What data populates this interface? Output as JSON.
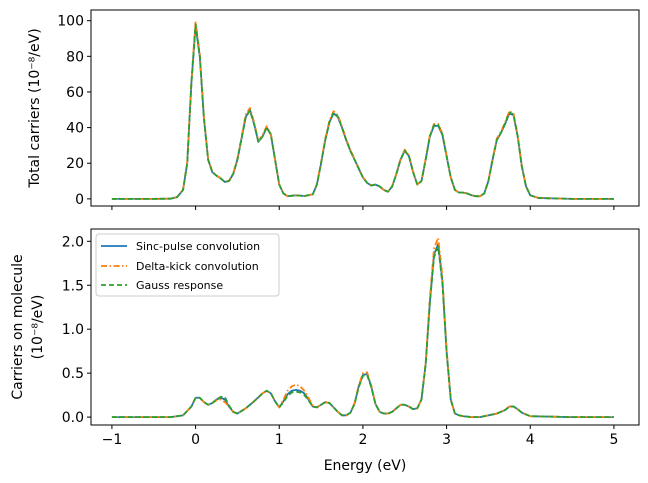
{
  "chart_data": [
    {
      "type": "line",
      "title": "",
      "xlabel": "",
      "ylabel": "Total carriers (10⁻⁸/eV)",
      "xlim": [
        -1.25,
        5.3
      ],
      "ylim": [
        -4,
        106
      ],
      "xticks": [
        -1,
        0,
        1,
        2,
        3,
        4,
        5
      ],
      "xtick_labels_visible": false,
      "yticks": [
        0,
        20,
        40,
        60,
        80,
        100
      ],
      "ytick_labels": [
        "0",
        "20",
        "40",
        "60",
        "80",
        "100"
      ],
      "legend": false,
      "series": [
        {
          "key": "sinc",
          "color": "#1f77b4",
          "dash": "solid",
          "x": [
            -1.0,
            -0.5,
            -0.3,
            -0.22,
            -0.15,
            -0.1,
            -0.05,
            0.0,
            0.05,
            0.1,
            0.15,
            0.2,
            0.25,
            0.3,
            0.35,
            0.4,
            0.45,
            0.5,
            0.55,
            0.6,
            0.65,
            0.7,
            0.75,
            0.8,
            0.85,
            0.9,
            0.95,
            1.0,
            1.05,
            1.1,
            1.2,
            1.3,
            1.4,
            1.45,
            1.5,
            1.55,
            1.6,
            1.65,
            1.7,
            1.75,
            1.8,
            1.85,
            1.9,
            2.0,
            2.05,
            2.1,
            2.15,
            2.2,
            2.25,
            2.3,
            2.35,
            2.4,
            2.45,
            2.5,
            2.55,
            2.6,
            2.65,
            2.7,
            2.75,
            2.8,
            2.85,
            2.9,
            2.95,
            3.0,
            3.05,
            3.1,
            3.15,
            3.2,
            3.25,
            3.3,
            3.35,
            3.4,
            3.45,
            3.5,
            3.55,
            3.6,
            3.65,
            3.7,
            3.75,
            3.8,
            3.85,
            3.9,
            3.95,
            4.0,
            4.1,
            4.5,
            5.0
          ],
          "y": [
            0.0,
            0.0,
            0.1,
            1.0,
            5.0,
            20.0,
            65.0,
            97.0,
            80.0,
            45.0,
            22.0,
            15.0,
            13.0,
            11.5,
            9.5,
            10.0,
            14.0,
            22.0,
            34.0,
            46.0,
            50.0,
            42.0,
            32.0,
            35.0,
            40.0,
            36.0,
            22.0,
            8.0,
            3.0,
            1.5,
            2.0,
            1.6,
            2.5,
            8.0,
            20.0,
            33.0,
            43.0,
            48.0,
            46.0,
            40.0,
            33.0,
            27.0,
            22.0,
            12.0,
            9.0,
            7.5,
            8.0,
            7.0,
            5.0,
            4.0,
            7.0,
            14.0,
            22.0,
            27.0,
            24.0,
            15.0,
            8.0,
            10.0,
            22.0,
            35.0,
            41.0,
            41.0,
            36.0,
            24.0,
            12.0,
            5.0,
            3.5,
            3.5,
            3.0,
            2.0,
            1.5,
            1.5,
            3.0,
            10.0,
            22.0,
            33.0,
            37.0,
            42.0,
            48.0,
            47.0,
            35.0,
            18.0,
            7.0,
            2.0,
            0.5,
            0.0,
            0.0
          ]
        },
        {
          "key": "delta",
          "color": "#ff7f0e",
          "dash": "dashdot",
          "x": [
            -1.0,
            -0.5,
            -0.3,
            -0.22,
            -0.15,
            -0.1,
            -0.05,
            0.0,
            0.05,
            0.1,
            0.15,
            0.2,
            0.25,
            0.3,
            0.35,
            0.4,
            0.45,
            0.5,
            0.55,
            0.6,
            0.65,
            0.7,
            0.75,
            0.8,
            0.85,
            0.9,
            0.95,
            1.0,
            1.05,
            1.1,
            1.2,
            1.3,
            1.4,
            1.45,
            1.5,
            1.55,
            1.6,
            1.65,
            1.7,
            1.75,
            1.8,
            1.85,
            1.9,
            2.0,
            2.05,
            2.1,
            2.15,
            2.2,
            2.25,
            2.3,
            2.35,
            2.4,
            2.45,
            2.5,
            2.55,
            2.6,
            2.65,
            2.7,
            2.75,
            2.8,
            2.85,
            2.9,
            2.95,
            3.0,
            3.05,
            3.1,
            3.15,
            3.2,
            3.25,
            3.3,
            3.35,
            3.4,
            3.45,
            3.5,
            3.55,
            3.6,
            3.65,
            3.7,
            3.75,
            3.8,
            3.85,
            3.9,
            3.95,
            4.0,
            4.1,
            4.5,
            5.0
          ],
          "y": [
            0.0,
            0.0,
            0.1,
            1.0,
            5.2,
            20.5,
            66.0,
            99.5,
            81.5,
            46.0,
            22.5,
            15.3,
            13.2,
            11.6,
            9.6,
            10.2,
            14.3,
            22.5,
            35.0,
            47.5,
            51.0,
            43.0,
            32.5,
            35.8,
            40.8,
            36.5,
            22.3,
            8.1,
            3.0,
            1.5,
            2.0,
            1.6,
            2.5,
            8.2,
            20.4,
            33.8,
            44.0,
            49.2,
            47.0,
            40.8,
            33.6,
            27.5,
            22.4,
            12.2,
            9.1,
            7.6,
            8.1,
            7.1,
            5.0,
            4.0,
            7.1,
            14.3,
            22.5,
            27.6,
            24.5,
            15.2,
            8.1,
            10.1,
            22.4,
            35.7,
            42.0,
            42.0,
            36.8,
            24.5,
            12.2,
            5.0,
            3.5,
            3.5,
            3.0,
            2.0,
            1.5,
            1.5,
            3.0,
            10.2,
            22.5,
            33.8,
            37.8,
            43.0,
            49.2,
            48.0,
            35.7,
            18.3,
            7.1,
            2.0,
            0.5,
            0.0,
            0.0
          ]
        },
        {
          "key": "gauss",
          "color": "#2ca02c",
          "dash": "dashed",
          "x": [
            -1.0,
            -0.5,
            -0.3,
            -0.22,
            -0.15,
            -0.1,
            -0.05,
            0.0,
            0.05,
            0.1,
            0.15,
            0.2,
            0.25,
            0.3,
            0.35,
            0.4,
            0.45,
            0.5,
            0.55,
            0.6,
            0.65,
            0.7,
            0.75,
            0.8,
            0.85,
            0.9,
            0.95,
            1.0,
            1.05,
            1.1,
            1.2,
            1.3,
            1.4,
            1.45,
            1.5,
            1.55,
            1.6,
            1.65,
            1.7,
            1.75,
            1.8,
            1.85,
            1.9,
            2.0,
            2.05,
            2.1,
            2.15,
            2.2,
            2.25,
            2.3,
            2.35,
            2.4,
            2.45,
            2.5,
            2.55,
            2.6,
            2.65,
            2.7,
            2.75,
            2.8,
            2.85,
            2.9,
            2.95,
            3.0,
            3.05,
            3.1,
            3.15,
            3.2,
            3.25,
            3.3,
            3.35,
            3.4,
            3.45,
            3.5,
            3.55,
            3.6,
            3.65,
            3.7,
            3.75,
            3.8,
            3.85,
            3.9,
            3.95,
            4.0,
            4.1,
            4.5,
            5.0
          ],
          "y": [
            0.0,
            0.0,
            0.1,
            1.0,
            5.0,
            20.0,
            65.0,
            98.0,
            80.5,
            45.2,
            22.0,
            15.0,
            13.0,
            11.5,
            9.5,
            10.0,
            14.0,
            22.0,
            34.0,
            46.0,
            49.5,
            41.8,
            32.0,
            35.0,
            40.0,
            36.0,
            22.0,
            8.0,
            3.0,
            1.5,
            2.0,
            1.6,
            2.5,
            8.0,
            20.0,
            33.0,
            43.0,
            48.5,
            46.2,
            40.0,
            33.0,
            27.0,
            22.0,
            12.0,
            9.0,
            7.5,
            8.0,
            7.0,
            5.0,
            4.0,
            7.0,
            14.0,
            22.0,
            27.0,
            24.2,
            15.0,
            8.0,
            10.0,
            22.0,
            35.0,
            41.5,
            41.5,
            36.2,
            24.0,
            12.0,
            5.0,
            3.5,
            3.5,
            3.0,
            2.0,
            1.5,
            1.5,
            3.0,
            10.0,
            22.0,
            33.0,
            37.0,
            42.5,
            48.5,
            47.5,
            35.0,
            18.0,
            7.0,
            2.0,
            0.5,
            0.0,
            0.0
          ]
        }
      ]
    },
    {
      "type": "line",
      "title": "",
      "xlabel": "Energy (eV)",
      "ylabel_lines": [
        "Carriers on molecule",
        "(10⁻⁸/eV)"
      ],
      "xlim": [
        -1.25,
        5.3
      ],
      "ylim": [
        -0.09,
        2.14
      ],
      "xticks": [
        -1,
        0,
        1,
        2,
        3,
        4,
        5
      ],
      "xtick_labels": [
        "−1",
        "0",
        "1",
        "2",
        "3",
        "4",
        "5"
      ],
      "yticks": [
        0.0,
        0.5,
        1.0,
        1.5,
        2.0
      ],
      "ytick_labels": [
        "0.0",
        "0.5",
        "1.0",
        "1.5",
        "2.0"
      ],
      "legend": true,
      "legend_position": "upper-left",
      "series": [
        {
          "key": "sinc",
          "name": "Sinc-pulse convolution",
          "color": "#1f77b4",
          "dash": "solid",
          "x": [
            -1.0,
            -0.3,
            -0.15,
            -0.05,
            0.0,
            0.05,
            0.1,
            0.15,
            0.2,
            0.25,
            0.3,
            0.35,
            0.4,
            0.45,
            0.5,
            0.6,
            0.7,
            0.8,
            0.85,
            0.9,
            0.95,
            1.0,
            1.05,
            1.1,
            1.15,
            1.2,
            1.25,
            1.3,
            1.35,
            1.4,
            1.45,
            1.5,
            1.55,
            1.6,
            1.65,
            1.7,
            1.75,
            1.8,
            1.85,
            1.9,
            1.95,
            2.0,
            2.05,
            2.1,
            2.15,
            2.2,
            2.25,
            2.3,
            2.35,
            2.4,
            2.45,
            2.5,
            2.55,
            2.6,
            2.65,
            2.7,
            2.75,
            2.8,
            2.85,
            2.9,
            2.95,
            3.0,
            3.05,
            3.1,
            3.15,
            3.2,
            3.3,
            3.4,
            3.5,
            3.6,
            3.7,
            3.75,
            3.8,
            3.85,
            3.9,
            4.0,
            4.5,
            5.0
          ],
          "y": [
            0.0,
            0.0,
            0.02,
            0.12,
            0.22,
            0.22,
            0.17,
            0.14,
            0.16,
            0.2,
            0.22,
            0.2,
            0.12,
            0.06,
            0.04,
            0.1,
            0.18,
            0.27,
            0.3,
            0.27,
            0.18,
            0.11,
            0.18,
            0.26,
            0.3,
            0.31,
            0.3,
            0.27,
            0.2,
            0.12,
            0.11,
            0.14,
            0.17,
            0.16,
            0.11,
            0.06,
            0.02,
            0.02,
            0.05,
            0.15,
            0.35,
            0.48,
            0.49,
            0.35,
            0.15,
            0.06,
            0.04,
            0.04,
            0.06,
            0.1,
            0.14,
            0.14,
            0.12,
            0.09,
            0.1,
            0.2,
            0.6,
            1.3,
            1.85,
            1.97,
            1.55,
            0.75,
            0.2,
            0.04,
            0.02,
            0.01,
            0.0,
            0.0,
            0.02,
            0.04,
            0.08,
            0.12,
            0.12,
            0.09,
            0.05,
            0.01,
            0.0,
            0.0
          ]
        },
        {
          "key": "delta",
          "name": "Delta-kick convolution",
          "color": "#ff7f0e",
          "dash": "dashdot",
          "x": [
            -1.0,
            -0.3,
            -0.15,
            -0.05,
            0.0,
            0.05,
            0.1,
            0.15,
            0.2,
            0.25,
            0.3,
            0.35,
            0.4,
            0.45,
            0.5,
            0.6,
            0.7,
            0.8,
            0.85,
            0.9,
            0.95,
            1.0,
            1.05,
            1.1,
            1.15,
            1.2,
            1.25,
            1.3,
            1.35,
            1.4,
            1.45,
            1.5,
            1.55,
            1.6,
            1.65,
            1.7,
            1.75,
            1.8,
            1.85,
            1.9,
            1.95,
            2.0,
            2.05,
            2.1,
            2.15,
            2.2,
            2.25,
            2.3,
            2.35,
            2.4,
            2.45,
            2.5,
            2.55,
            2.6,
            2.65,
            2.7,
            2.75,
            2.8,
            2.85,
            2.9,
            2.95,
            3.0,
            3.05,
            3.1,
            3.15,
            3.2,
            3.3,
            3.4,
            3.5,
            3.6,
            3.7,
            3.75,
            3.8,
            3.85,
            3.9,
            4.0,
            4.5,
            5.0
          ],
          "y": [
            0.0,
            0.0,
            0.02,
            0.12,
            0.22,
            0.22,
            0.17,
            0.14,
            0.16,
            0.19,
            0.2,
            0.17,
            0.12,
            0.06,
            0.04,
            0.1,
            0.18,
            0.27,
            0.3,
            0.27,
            0.18,
            0.11,
            0.2,
            0.3,
            0.35,
            0.37,
            0.35,
            0.3,
            0.22,
            0.13,
            0.11,
            0.14,
            0.17,
            0.16,
            0.11,
            0.06,
            0.02,
            0.02,
            0.05,
            0.16,
            0.36,
            0.5,
            0.51,
            0.36,
            0.15,
            0.06,
            0.04,
            0.04,
            0.06,
            0.1,
            0.14,
            0.14,
            0.12,
            0.09,
            0.1,
            0.2,
            0.62,
            1.35,
            1.92,
            2.04,
            1.6,
            0.77,
            0.2,
            0.04,
            0.02,
            0.01,
            0.0,
            0.0,
            0.02,
            0.04,
            0.08,
            0.12,
            0.12,
            0.09,
            0.05,
            0.01,
            0.0,
            0.0
          ]
        },
        {
          "key": "gauss",
          "name": "Gauss response",
          "color": "#2ca02c",
          "dash": "dashed",
          "x": [
            -1.0,
            -0.3,
            -0.15,
            -0.05,
            0.0,
            0.05,
            0.1,
            0.15,
            0.2,
            0.25,
            0.3,
            0.35,
            0.4,
            0.45,
            0.5,
            0.6,
            0.7,
            0.8,
            0.85,
            0.9,
            0.95,
            1.0,
            1.05,
            1.1,
            1.15,
            1.2,
            1.25,
            1.3,
            1.35,
            1.4,
            1.45,
            1.5,
            1.55,
            1.6,
            1.65,
            1.7,
            1.75,
            1.8,
            1.85,
            1.9,
            1.95,
            2.0,
            2.05,
            2.1,
            2.15,
            2.2,
            2.25,
            2.3,
            2.35,
            2.4,
            2.45,
            2.5,
            2.55,
            2.6,
            2.65,
            2.7,
            2.75,
            2.8,
            2.85,
            2.9,
            2.95,
            3.0,
            3.05,
            3.1,
            3.15,
            3.2,
            3.3,
            3.4,
            3.5,
            3.6,
            3.7,
            3.75,
            3.8,
            3.85,
            3.9,
            4.0,
            4.5,
            5.0
          ],
          "y": [
            0.0,
            0.0,
            0.02,
            0.12,
            0.22,
            0.22,
            0.17,
            0.14,
            0.16,
            0.2,
            0.23,
            0.23,
            0.13,
            0.06,
            0.04,
            0.1,
            0.18,
            0.27,
            0.3,
            0.27,
            0.18,
            0.11,
            0.17,
            0.24,
            0.28,
            0.29,
            0.28,
            0.25,
            0.19,
            0.12,
            0.11,
            0.14,
            0.17,
            0.16,
            0.11,
            0.06,
            0.02,
            0.02,
            0.05,
            0.15,
            0.34,
            0.47,
            0.48,
            0.34,
            0.15,
            0.06,
            0.04,
            0.04,
            0.06,
            0.1,
            0.14,
            0.14,
            0.12,
            0.09,
            0.1,
            0.2,
            0.6,
            1.3,
            1.82,
            1.94,
            1.52,
            0.74,
            0.2,
            0.04,
            0.02,
            0.01,
            0.0,
            0.0,
            0.02,
            0.04,
            0.08,
            0.12,
            0.12,
            0.09,
            0.05,
            0.01,
            0.0,
            0.0
          ]
        }
      ]
    }
  ]
}
